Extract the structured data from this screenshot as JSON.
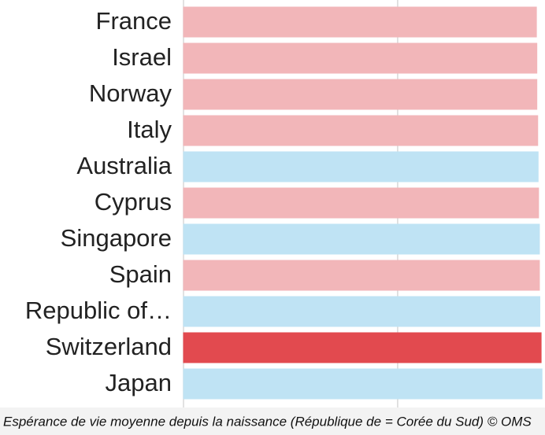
{
  "chart_data": {
    "type": "barh",
    "categories": [
      "France",
      "Israel",
      "Norway",
      "Italy",
      "Australia",
      "Cyprus",
      "Singapore",
      "Spain",
      "Republic of…",
      "Switzerland",
      "Japan"
    ],
    "values": [
      82.4,
      82.5,
      82.5,
      82.7,
      82.8,
      82.9,
      83.1,
      83.1,
      83.2,
      83.5,
      83.7
    ],
    "colors": [
      "#f2b6b9",
      "#f2b6b9",
      "#f2b6b9",
      "#f2b6b9",
      "#bfe3f4",
      "#f2b6b9",
      "#bfe3f4",
      "#f2b6b9",
      "#bfe3f4",
      "#e24a4f",
      "#bfe3f4"
    ],
    "xlim": [
      0,
      84.4
    ],
    "xticks": [
      0,
      50
    ],
    "grid": true,
    "caption": "Espérance de vie moyenne depuis la naissance (République de = Corée du Sud) © OMS"
  }
}
